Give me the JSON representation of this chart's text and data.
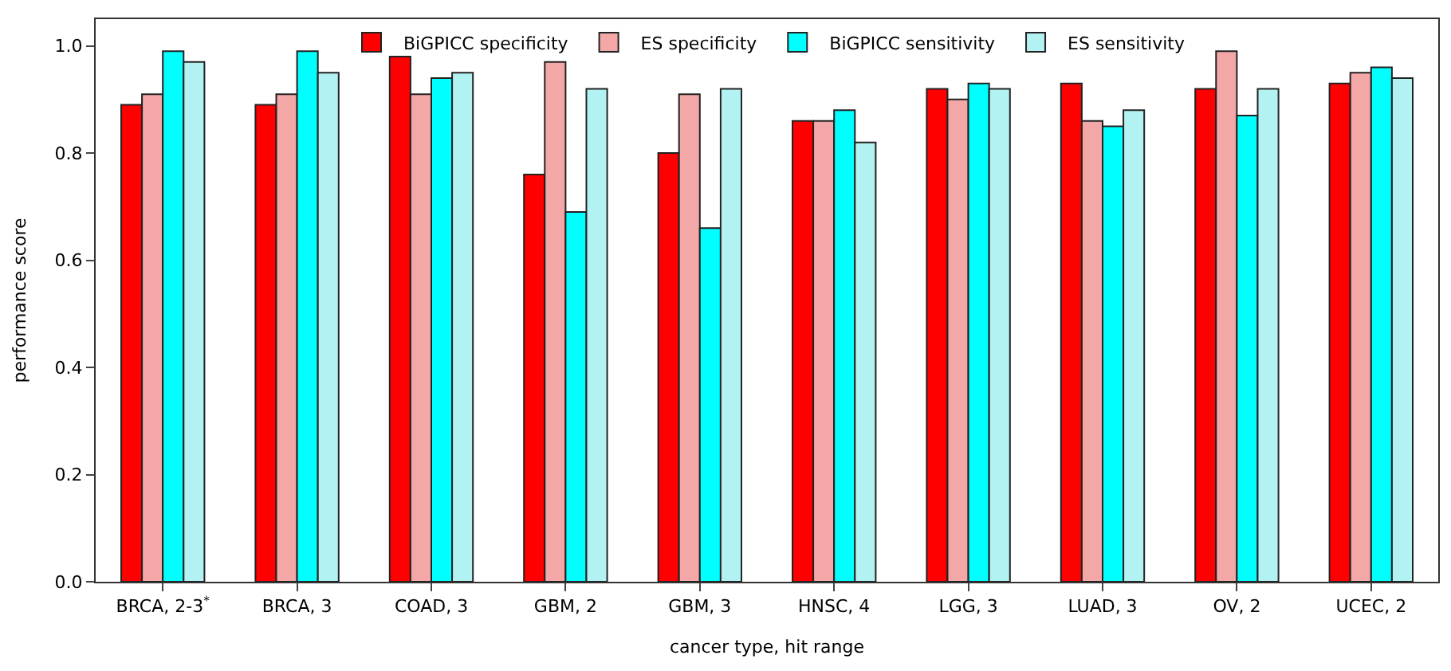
{
  "chart_data": {
    "type": "bar",
    "xlabel": "cancer type, hit range",
    "ylabel": "performance score",
    "categories": [
      "BRCA, 2-3$^{*}$",
      "BRCA, 3",
      "COAD, 3",
      "GBM, 2",
      "GBM, 3",
      "HNSC, 4",
      "LGG, 3",
      "LUAD, 3",
      "OV, 2",
      "UCEC, 2"
    ],
    "series": [
      {
        "name": "BiGPICC specificity",
        "color": "#ff0000",
        "values": [
          0.89,
          0.89,
          0.98,
          0.76,
          0.8,
          0.86,
          0.92,
          0.93,
          0.92,
          0.93
        ]
      },
      {
        "name": "ES specificity",
        "color": "#f4a7a7",
        "values": [
          0.91,
          0.91,
          0.91,
          0.97,
          0.91,
          0.86,
          0.9,
          0.86,
          0.99,
          0.95
        ]
      },
      {
        "name": "BiGPICC sensitivity",
        "color": "#00ffff",
        "values": [
          0.99,
          0.99,
          0.94,
          0.69,
          0.66,
          0.88,
          0.93,
          0.85,
          0.87,
          0.96
        ]
      },
      {
        "name": "ES sensitivity",
        "color": "#b3f2f2",
        "values": [
          0.97,
          0.95,
          0.95,
          0.92,
          0.92,
          0.82,
          0.92,
          0.88,
          0.92,
          0.94
        ]
      }
    ],
    "ylim": [
      0,
      1.05
    ],
    "yticks": [
      {
        "value": 0,
        "label": "0.0"
      },
      0.2,
      0.4,
      0.6,
      0.8,
      {
        "value": 1,
        "label": "1.0"
      }
    ],
    "grid": false,
    "legend": "top"
  }
}
